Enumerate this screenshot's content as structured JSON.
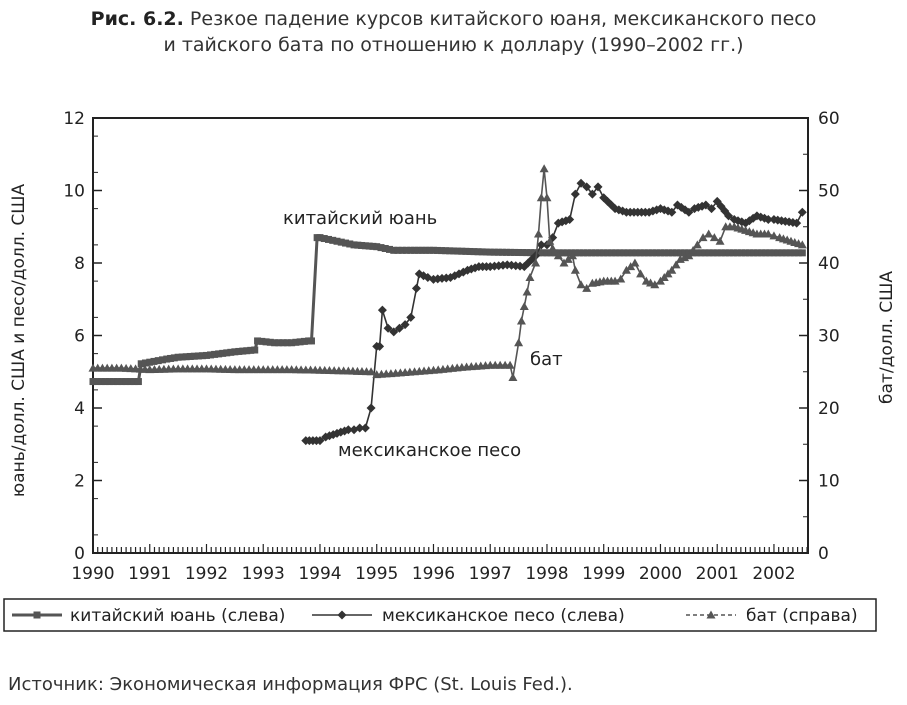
{
  "caption": {
    "number": "Рис. 6.2.",
    "line1": "Резкое падение курсов китайского юаня, мексиканского песо",
    "line2": "и тайского бата по отношению к доллару (1990–2002 гг.)"
  },
  "source": "Источник: Экономическая информация ФРС (St. Louis Fed.).",
  "chart_data": {
    "type": "line",
    "ylabel_left": "юань/долл. США и песо/долл. США",
    "ylabel_right": "бат/долл. США",
    "xlim": [
      1990,
      2002.6
    ],
    "ylim_left": [
      0,
      12
    ],
    "ylim_right": [
      0,
      60
    ],
    "x_ticks": [
      "1990",
      "1991",
      "1992",
      "1993",
      "1994",
      "1995",
      "1996",
      "1997",
      "1998",
      "1999",
      "2000",
      "2001",
      "2002"
    ],
    "y_ticks_left": [
      "0",
      "2",
      "4",
      "6",
      "8",
      "10",
      "12"
    ],
    "y_ticks_right": [
      "0",
      "10",
      "20",
      "30",
      "40",
      "50",
      "60"
    ],
    "grid": false,
    "legend_position": "bottom",
    "series": [
      {
        "name": "китайский юань (слева)",
        "label": "китайский юань",
        "axis": "left",
        "marker": "square",
        "color": "#555555",
        "x": [
          1990.0,
          1990.8,
          1990.85,
          1991.3,
          1991.5,
          1992.0,
          1992.5,
          1992.85,
          1992.9,
          1993.2,
          1993.5,
          1993.8,
          1993.85,
          1993.95,
          1994.0,
          1994.3,
          1994.6,
          1995.0,
          1995.3,
          1995.6,
          1996.0,
          1997.0,
          1998.0,
          1999.0,
          2000.0,
          2001.0,
          2002.0,
          2002.5
        ],
        "values": [
          4.73,
          4.73,
          5.22,
          5.35,
          5.4,
          5.45,
          5.55,
          5.6,
          5.85,
          5.8,
          5.8,
          5.85,
          5.85,
          8.7,
          8.7,
          8.6,
          8.5,
          8.45,
          8.35,
          8.35,
          8.35,
          8.3,
          8.28,
          8.28,
          8.28,
          8.28,
          8.28,
          8.28
        ]
      },
      {
        "name": "мексиканское песо (слева)",
        "label": "мексиканское песо",
        "axis": "left",
        "marker": "diamond",
        "color": "#333333",
        "x": [
          1993.75,
          1994.0,
          1994.1,
          1994.3,
          1994.5,
          1994.6,
          1994.7,
          1994.8,
          1994.9,
          1995.0,
          1995.05,
          1995.1,
          1995.2,
          1995.3,
          1995.4,
          1995.5,
          1995.6,
          1995.7,
          1995.75,
          1995.9,
          1996.0,
          1996.3,
          1996.6,
          1996.8,
          1997.0,
          1997.3,
          1997.6,
          1997.8,
          1997.9,
          1998.0,
          1998.1,
          1998.2,
          1998.4,
          1998.5,
          1998.6,
          1998.7,
          1998.8,
          1998.9,
          1999.0,
          1999.2,
          1999.4,
          1999.6,
          1999.8,
          2000.0,
          2000.2,
          2000.3,
          2000.5,
          2000.6,
          2000.8,
          2000.9,
          2001.0,
          2001.2,
          2001.3,
          2001.5,
          2001.7,
          2001.9,
          2002.0,
          2002.2,
          2002.4,
          2002.5
        ],
        "values": [
          3.1,
          3.1,
          3.2,
          3.3,
          3.4,
          3.4,
          3.45,
          3.45,
          4.0,
          5.7,
          5.7,
          6.7,
          6.2,
          6.1,
          6.2,
          6.3,
          6.5,
          7.3,
          7.7,
          7.6,
          7.55,
          7.6,
          7.8,
          7.9,
          7.9,
          7.95,
          7.9,
          8.2,
          8.5,
          8.5,
          8.7,
          9.1,
          9.2,
          9.9,
          10.2,
          10.1,
          9.9,
          10.1,
          9.8,
          9.5,
          9.4,
          9.4,
          9.4,
          9.5,
          9.4,
          9.6,
          9.4,
          9.5,
          9.6,
          9.5,
          9.7,
          9.3,
          9.2,
          9.1,
          9.3,
          9.2,
          9.2,
          9.15,
          9.1,
          9.4
        ]
      },
      {
        "name": "бат (справа)",
        "label": "бат",
        "axis": "right",
        "marker": "triangle",
        "color": "#555555",
        "x": [
          1990.0,
          1990.5,
          1991.0,
          1991.5,
          1992.0,
          1992.5,
          1993.0,
          1993.5,
          1994.0,
          1994.5,
          1994.9,
          1995.0,
          1995.5,
          1996.0,
          1996.5,
          1997.0,
          1997.35,
          1997.4,
          1997.5,
          1997.55,
          1997.6,
          1997.65,
          1997.7,
          1997.8,
          1997.85,
          1997.9,
          1997.95,
          1998.0,
          1998.05,
          1998.1,
          1998.2,
          1998.3,
          1998.45,
          1998.5,
          1998.6,
          1998.7,
          1998.8,
          1999.0,
          1999.2,
          1999.3,
          1999.4,
          1999.55,
          1999.65,
          1999.75,
          1999.9,
          2000.0,
          2000.2,
          2000.35,
          2000.5,
          2000.65,
          2000.75,
          2000.85,
          2000.95,
          2001.05,
          2001.15,
          2001.3,
          2001.5,
          2001.7,
          2001.9,
          2002.1,
          2002.3,
          2002.5
        ],
        "values": [
          25.5,
          25.5,
          25.3,
          25.4,
          25.4,
          25.3,
          25.3,
          25.3,
          25.2,
          25.1,
          25.0,
          24.6,
          24.9,
          25.2,
          25.6,
          25.9,
          25.9,
          24.2,
          29.0,
          32.0,
          34.0,
          36.0,
          38.0,
          40.0,
          44.0,
          49.0,
          53.0,
          49.0,
          43.0,
          42.0,
          41.0,
          40.0,
          41.0,
          39.0,
          37.0,
          36.5,
          37.2,
          37.5,
          37.5,
          37.8,
          39.0,
          40.0,
          38.5,
          37.5,
          37.0,
          37.5,
          39.0,
          40.5,
          41.0,
          42.5,
          43.5,
          44.0,
          43.5,
          43.0,
          45.0,
          45.0,
          44.5,
          44.0,
          44.0,
          43.5,
          43.0,
          42.5
        ]
      }
    ]
  }
}
